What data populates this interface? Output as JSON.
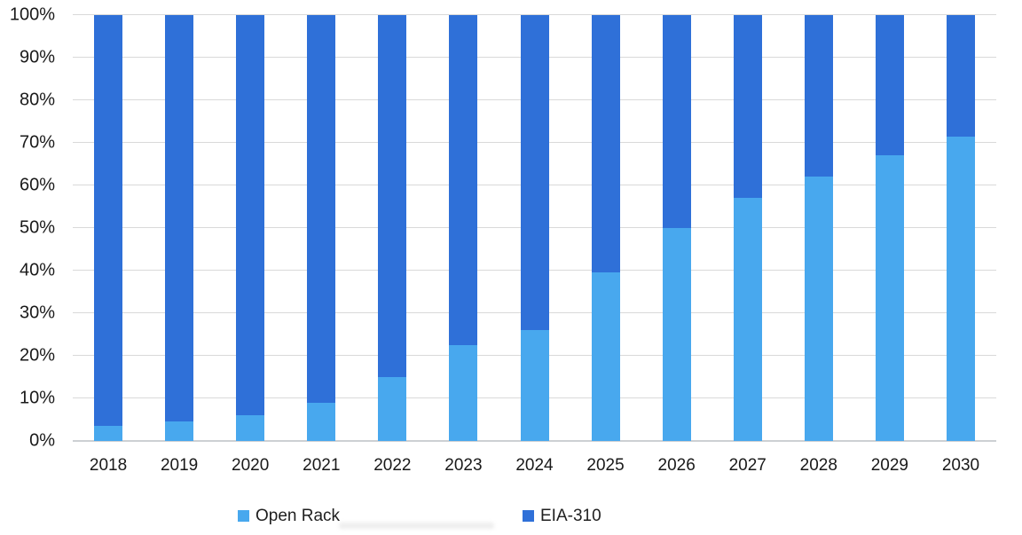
{
  "chart_data": {
    "type": "bar",
    "variant": "100-percent-stacked-column",
    "title": "",
    "xlabel": "",
    "ylabel": "",
    "categories": [
      "2018",
      "2019",
      "2020",
      "2021",
      "2022",
      "2023",
      "2024",
      "2025",
      "2026",
      "2027",
      "2028",
      "2029",
      "2030"
    ],
    "series": [
      {
        "name": "Open Rack",
        "color": "#48a8ee",
        "values": [
          3.5,
          4.5,
          6,
          9,
          15,
          22.5,
          26,
          39.5,
          50,
          57,
          62,
          67,
          71.5
        ]
      },
      {
        "name": "EIA-310",
        "color": "#2f70d8",
        "values": [
          96.5,
          95.5,
          94,
          91,
          85,
          77.5,
          74,
          60.5,
          50,
          43,
          38,
          33,
          28.5
        ]
      }
    ],
    "ylim": [
      0,
      100
    ],
    "ytick_step": 10,
    "ytick_labels": [
      "0%",
      "10%",
      "20%",
      "30%",
      "40%",
      "50%",
      "60%",
      "70%",
      "80%",
      "90%",
      "100%"
    ],
    "grid": true,
    "legend_position": "bottom"
  },
  "legend": {
    "items": [
      {
        "label": "Open Rack",
        "color": "#48a8ee"
      },
      {
        "label": "EIA-310",
        "color": "#2f70d8"
      }
    ]
  },
  "colors": {
    "open_rack": "#48a8ee",
    "eia_310": "#2f70d8",
    "gridline": "#d9d9d9",
    "axis_text": "#1a1a1a",
    "background": "#ffffff"
  }
}
